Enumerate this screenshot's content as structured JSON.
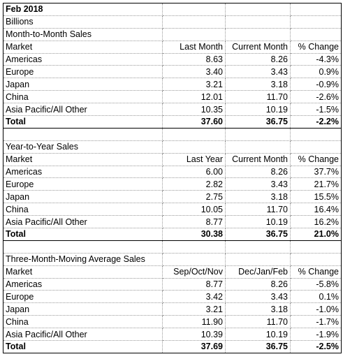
{
  "header": {
    "title": "Feb 2018",
    "unit": "Billions"
  },
  "sections": [
    {
      "title": "Month-to-Month Sales",
      "columns": [
        "Market",
        "Last Month",
        "Current Month",
        "% Change"
      ],
      "rows": [
        [
          "Americas",
          "8.63",
          "8.26",
          "-4.3%"
        ],
        [
          "Europe",
          "3.40",
          "3.43",
          "0.9%"
        ],
        [
          "Japan",
          "3.21",
          "3.18",
          "-0.9%"
        ],
        [
          "China",
          "12.01",
          "11.70",
          "-2.6%"
        ],
        [
          "Asia Pacific/All Other",
          "10.35",
          "10.19",
          "-1.5%"
        ]
      ],
      "total": [
        "Total",
        "37.60",
        "36.75",
        "-2.2%"
      ]
    },
    {
      "title": "Year-to-Year Sales",
      "columns": [
        "Market",
        "Last Year",
        "Current Month",
        "% Change"
      ],
      "rows": [
        [
          "Americas",
          "6.00",
          "8.26",
          "37.7%"
        ],
        [
          "Europe",
          "2.82",
          "3.43",
          "21.7%"
        ],
        [
          "Japan",
          "2.75",
          "3.18",
          "15.5%"
        ],
        [
          "China",
          "10.05",
          "11.70",
          "16.4%"
        ],
        [
          "Asia Pacific/All Other",
          "8.77",
          "10.19",
          "16.2%"
        ]
      ],
      "total": [
        "Total",
        "30.38",
        "36.75",
        "21.0%"
      ]
    },
    {
      "title": "Three-Month-Moving Average Sales",
      "columns": [
        "Market",
        "Sep/Oct/Nov",
        "Dec/Jan/Feb",
        "% Change"
      ],
      "rows": [
        [
          "Americas",
          "8.77",
          "8.26",
          "-5.8%"
        ],
        [
          "Europe",
          "3.42",
          "3.43",
          "0.1%"
        ],
        [
          "Japan",
          "3.21",
          "3.18",
          "-1.0%"
        ],
        [
          "China",
          "11.90",
          "11.70",
          "-1.7%"
        ],
        [
          "Asia Pacific/All Other",
          "10.39",
          "10.19",
          "-1.9%"
        ]
      ],
      "total": [
        "Total",
        "37.69",
        "36.75",
        "-2.5%"
      ]
    }
  ]
}
